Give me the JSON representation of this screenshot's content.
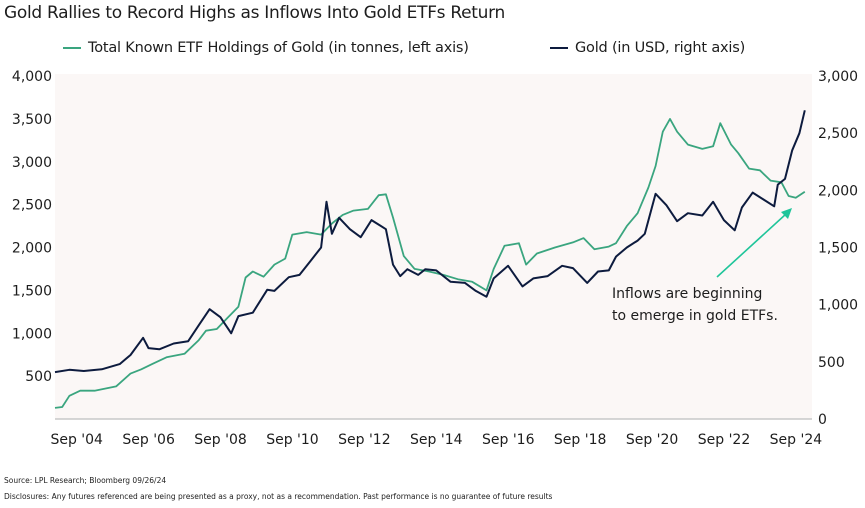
{
  "title": "Gold Rallies to Record Highs as Inflows Into Gold ETFs Return",
  "footer": {
    "source": "Source: LPL Research; Bloomberg 09/26/24",
    "disclosures": "Disclosures: Any futures referenced are being presented as a proxy, not as a recommendation. Past performance is no guarantee of future results"
  },
  "chart_data": {
    "type": "line",
    "title": "Gold Rallies to Record Highs as Inflows Into Gold ETFs Return",
    "legend_placement": "top",
    "grid": false,
    "x_ticks": [
      "Sep '04",
      "Sep '06",
      "Sep '08",
      "Sep '10",
      "Sep '12",
      "Sep '14",
      "Sep '16",
      "Sep '18",
      "Sep '20",
      "Sep '22",
      "Sep '24"
    ],
    "x_tick_values": [
      2004.67,
      2006.67,
      2008.67,
      2010.67,
      2012.67,
      2014.67,
      2016.67,
      2018.67,
      2020.67,
      2022.67,
      2024.67
    ],
    "xlim": [
      2003.9,
      2024.95
    ],
    "y_left": {
      "ticks": [
        "500",
        "1,000",
        "1,500",
        "2,000",
        "2,500",
        "3,000",
        "3,500",
        "4,000"
      ],
      "tick_values": [
        500,
        1000,
        1500,
        2000,
        2500,
        3000,
        3500,
        4000
      ],
      "ylim": [
        0,
        4000
      ]
    },
    "y_right": {
      "ticks": [
        "0",
        "500",
        "1,000",
        "1,500",
        "2,000",
        "2,500",
        "3,000"
      ],
      "tick_values": [
        0,
        500,
        1000,
        1500,
        2000,
        2500,
        3000
      ],
      "ylim": [
        0,
        3000
      ]
    },
    "series": [
      {
        "name": "Total Known ETF Holdings of Gold (in tonnes, left axis)",
        "axis": "left",
        "color": "#3aa57f",
        "x": [
          2003.9,
          2004.1,
          2004.3,
          2004.6,
          2005.0,
          2005.6,
          2006.0,
          2006.3,
          2006.6,
          2007.0,
          2007.5,
          2007.9,
          2008.1,
          2008.4,
          2008.7,
          2009.0,
          2009.2,
          2009.4,
          2009.7,
          2010.0,
          2010.3,
          2010.5,
          2010.9,
          2011.3,
          2011.6,
          2011.9,
          2012.2,
          2012.6,
          2012.9,
          2013.1,
          2013.3,
          2013.6,
          2013.9,
          2014.3,
          2014.7,
          2015.1,
          2015.5,
          2015.9,
          2016.1,
          2016.4,
          2016.8,
          2017.0,
          2017.3,
          2017.8,
          2018.3,
          2018.6,
          2018.9,
          2019.3,
          2019.5,
          2019.8,
          2020.1,
          2020.4,
          2020.6,
          2020.8,
          2021.0,
          2021.2,
          2021.5,
          2021.9,
          2022.2,
          2022.4,
          2022.7,
          2022.9,
          2023.2,
          2023.5,
          2023.8,
          2024.1,
          2024.3,
          2024.5,
          2024.75
        ],
        "values": [
          130,
          140,
          270,
          330,
          330,
          380,
          530,
          580,
          640,
          720,
          760,
          920,
          1030,
          1050,
          1180,
          1310,
          1650,
          1720,
          1660,
          1800,
          1870,
          2150,
          2180,
          2150,
          2280,
          2380,
          2430,
          2450,
          2610,
          2620,
          2350,
          1900,
          1750,
          1720,
          1680,
          1630,
          1600,
          1500,
          1750,
          2020,
          2050,
          1800,
          1930,
          2000,
          2060,
          2110,
          1980,
          2010,
          2050,
          2250,
          2400,
          2700,
          2950,
          3350,
          3500,
          3350,
          3200,
          3150,
          3180,
          3450,
          3200,
          3100,
          2920,
          2900,
          2780,
          2760,
          2600,
          2580,
          2650
        ]
      },
      {
        "name": "Gold (in USD, right axis)",
        "axis": "right",
        "color": "#0d1b3e",
        "x": [
          2003.9,
          2004.3,
          2004.7,
          2005.2,
          2005.7,
          2006.0,
          2006.35,
          2006.5,
          2006.8,
          2007.2,
          2007.6,
          2007.9,
          2008.2,
          2008.5,
          2008.8,
          2009.0,
          2009.4,
          2009.8,
          2010.0,
          2010.4,
          2010.7,
          2011.0,
          2011.3,
          2011.45,
          2011.6,
          2011.8,
          2012.1,
          2012.4,
          2012.7,
          2012.9,
          2013.1,
          2013.3,
          2013.5,
          2013.7,
          2014.0,
          2014.2,
          2014.5,
          2014.9,
          2015.3,
          2015.6,
          2015.9,
          2016.1,
          2016.5,
          2016.9,
          2017.2,
          2017.6,
          2018.0,
          2018.3,
          2018.7,
          2019.0,
          2019.3,
          2019.5,
          2019.8,
          2020.1,
          2020.3,
          2020.6,
          2020.9,
          2021.2,
          2021.5,
          2021.9,
          2022.2,
          2022.5,
          2022.8,
          2023.0,
          2023.3,
          2023.6,
          2023.9,
          2024.0,
          2024.2,
          2024.4,
          2024.6,
          2024.75
        ],
        "values": [
          410,
          430,
          420,
          435,
          480,
          560,
          710,
          620,
          610,
          660,
          680,
          820,
          960,
          890,
          750,
          900,
          930,
          1130,
          1120,
          1240,
          1260,
          1380,
          1500,
          1900,
          1620,
          1760,
          1660,
          1590,
          1740,
          1700,
          1660,
          1350,
          1250,
          1310,
          1260,
          1310,
          1300,
          1200,
          1190,
          1120,
          1070,
          1230,
          1340,
          1160,
          1230,
          1250,
          1340,
          1320,
          1190,
          1290,
          1300,
          1420,
          1500,
          1560,
          1620,
          1970,
          1870,
          1730,
          1800,
          1780,
          1900,
          1740,
          1650,
          1850,
          1980,
          1920,
          1860,
          2050,
          2100,
          2350,
          2500,
          2700
        ]
      }
    ],
    "annotations": [
      {
        "text_lines": [
          "Inflows are beginning",
          "to emerge in gold ETFs."
        ],
        "arrow_color": "#1fc59a"
      }
    ],
    "plot_background": "#fbf7f6"
  }
}
